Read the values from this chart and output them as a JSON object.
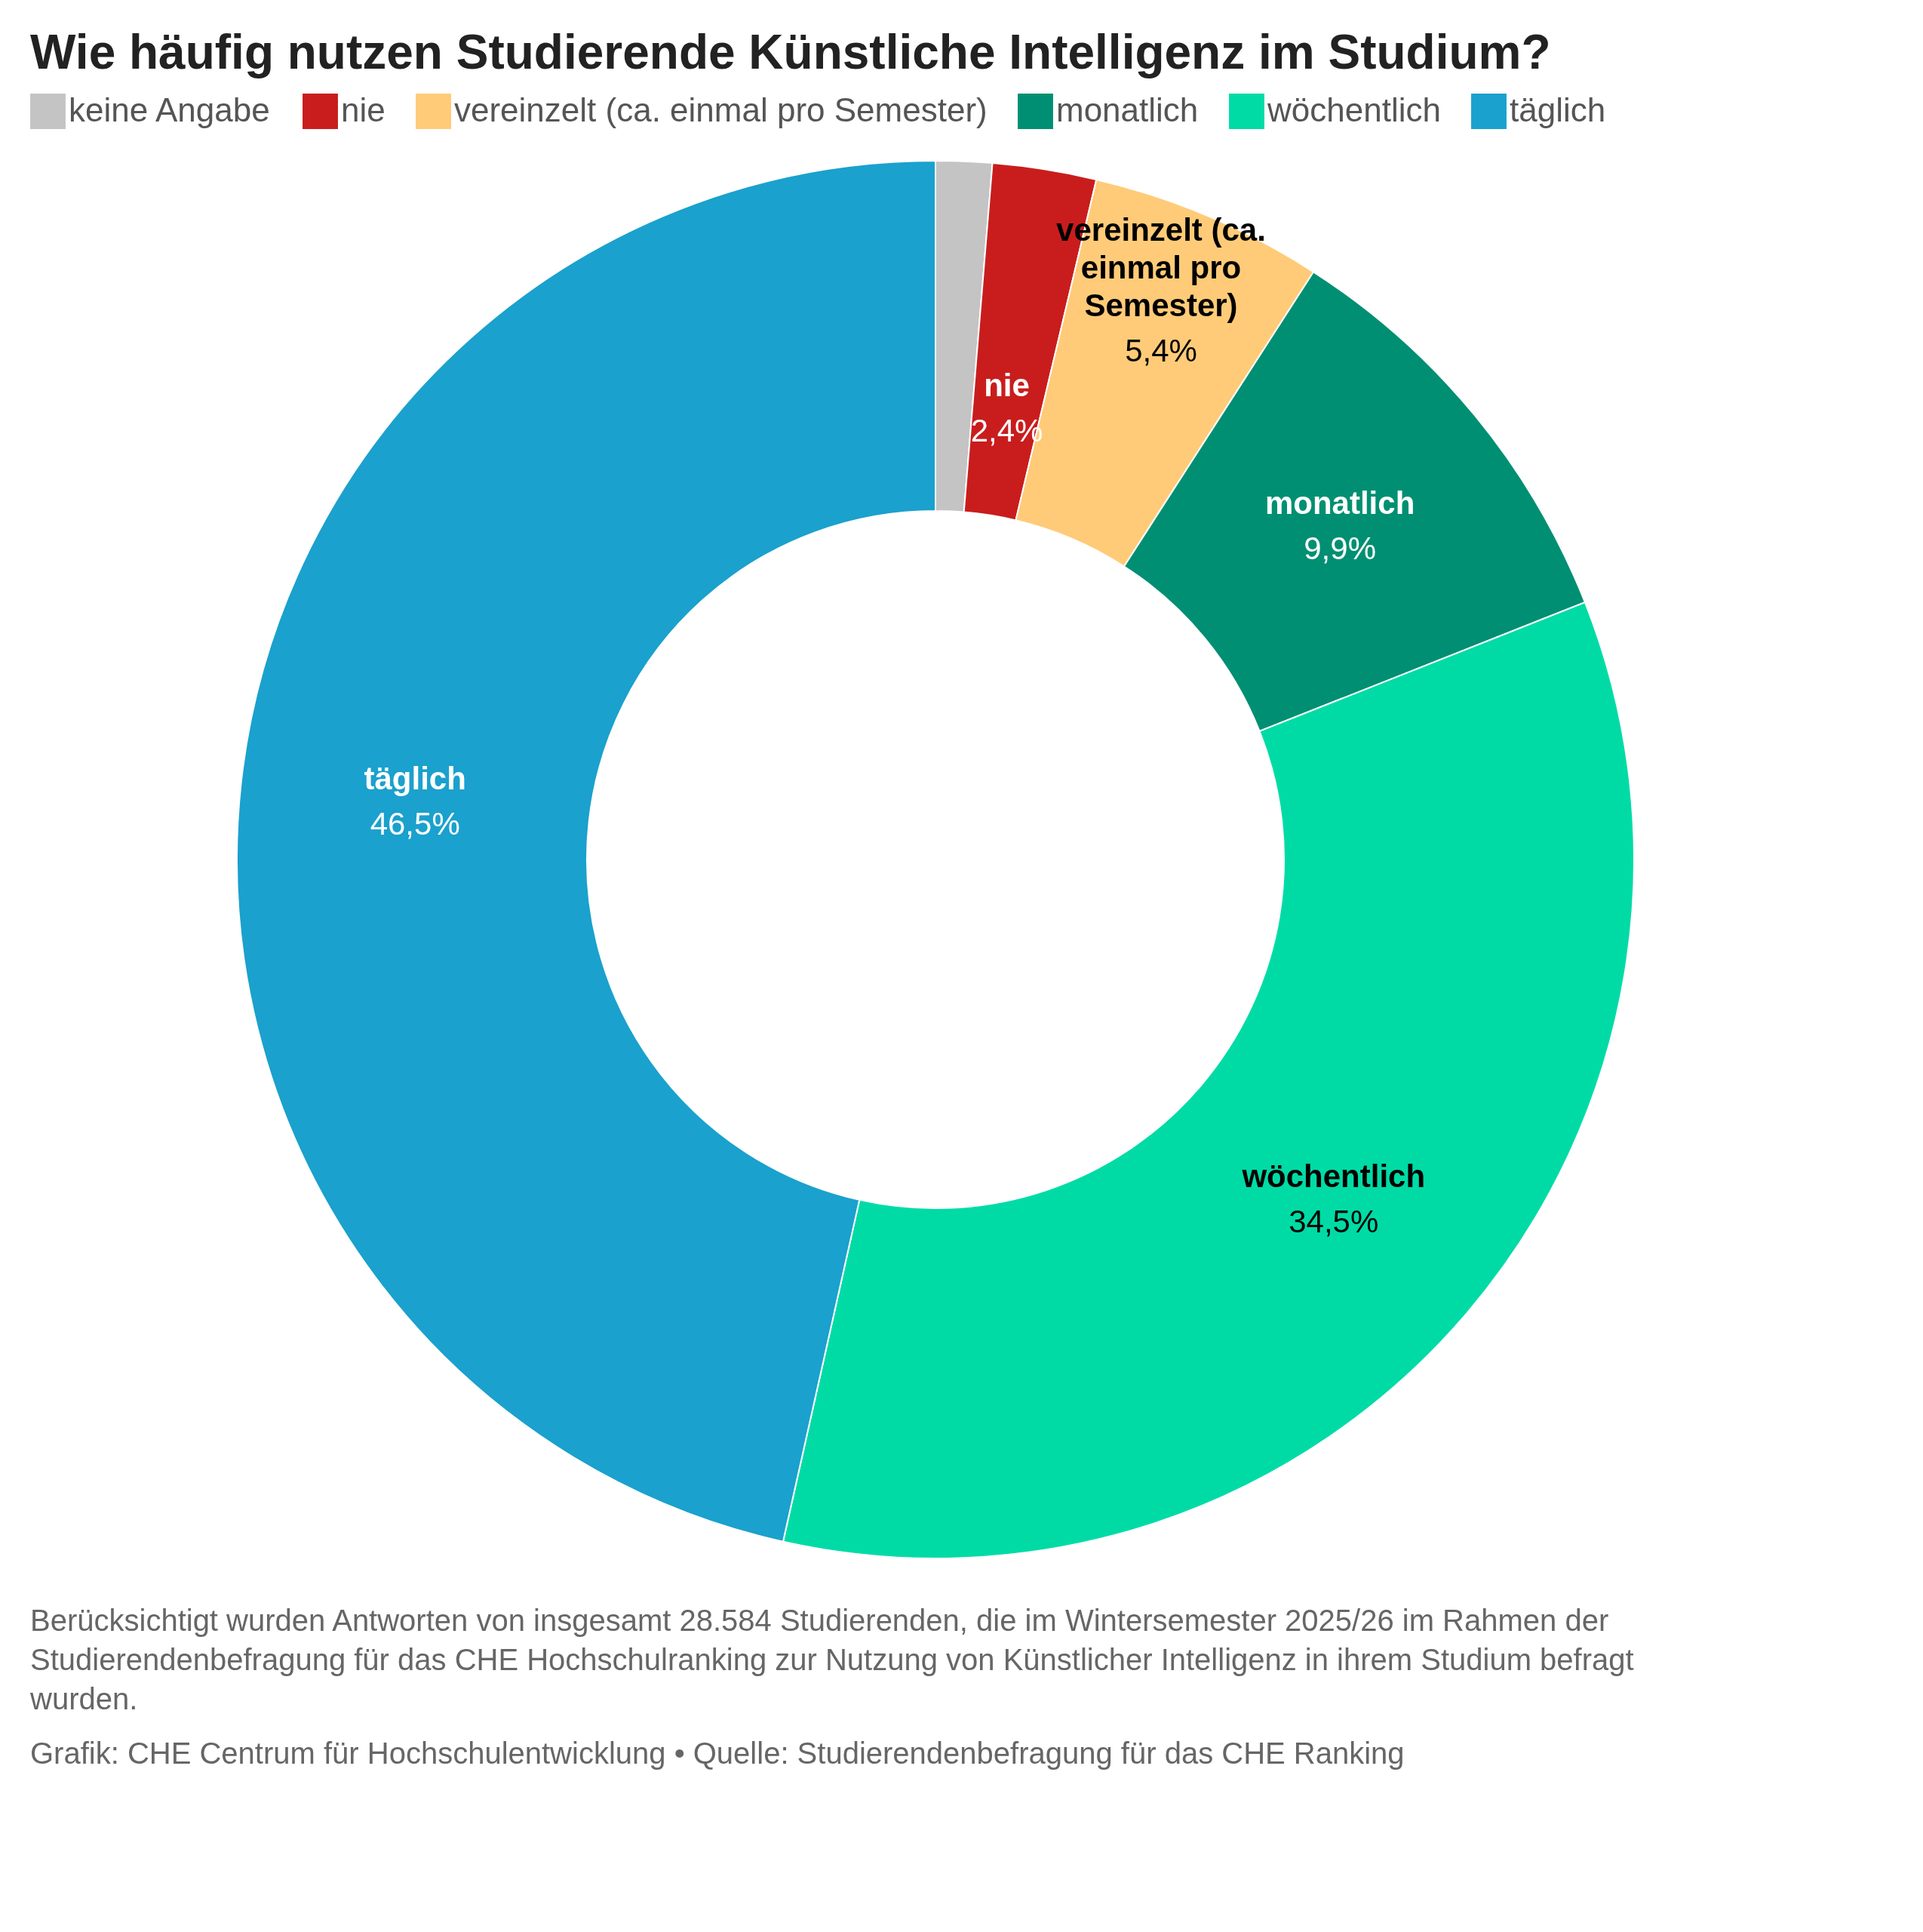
{
  "chart_data": {
    "type": "donut",
    "title": "Wie häufig nutzen Studierende Künstliche Intelligenz im Studium?",
    "categories": [
      "keine Angabe",
      "nie",
      "vereinzelt (ca. einmal pro Semester)",
      "monatlich",
      "wöchentlich",
      "täglich"
    ],
    "values": [
      1.3,
      2.4,
      5.4,
      9.9,
      34.5,
      46.5
    ],
    "colors": [
      "#c4c4c4",
      "#c91d1d",
      "#ffcb78",
      "#008f72",
      "#00dba6",
      "#1aa1cd"
    ],
    "value_labels": [
      null,
      "2,4%",
      "5,4%",
      "9,9%",
      "34,5%",
      "46,5%"
    ],
    "legend": "top",
    "annotations": [
      "Berücksichtigt wurden Antworten von insgesamt 28.584 Studierenden, die im Wintersemester 2025/26 im Rahmen der Studierendenbefragung für das CHE Hochschulranking zur Nutzung von Künstlicher Intelligenz in ihrem Studium befragt wurden.",
      "Grafik: CHE Centrum für Hochschulentwicklung • Quelle: Studierendenbefragung für das CHE Ranking"
    ]
  }
}
